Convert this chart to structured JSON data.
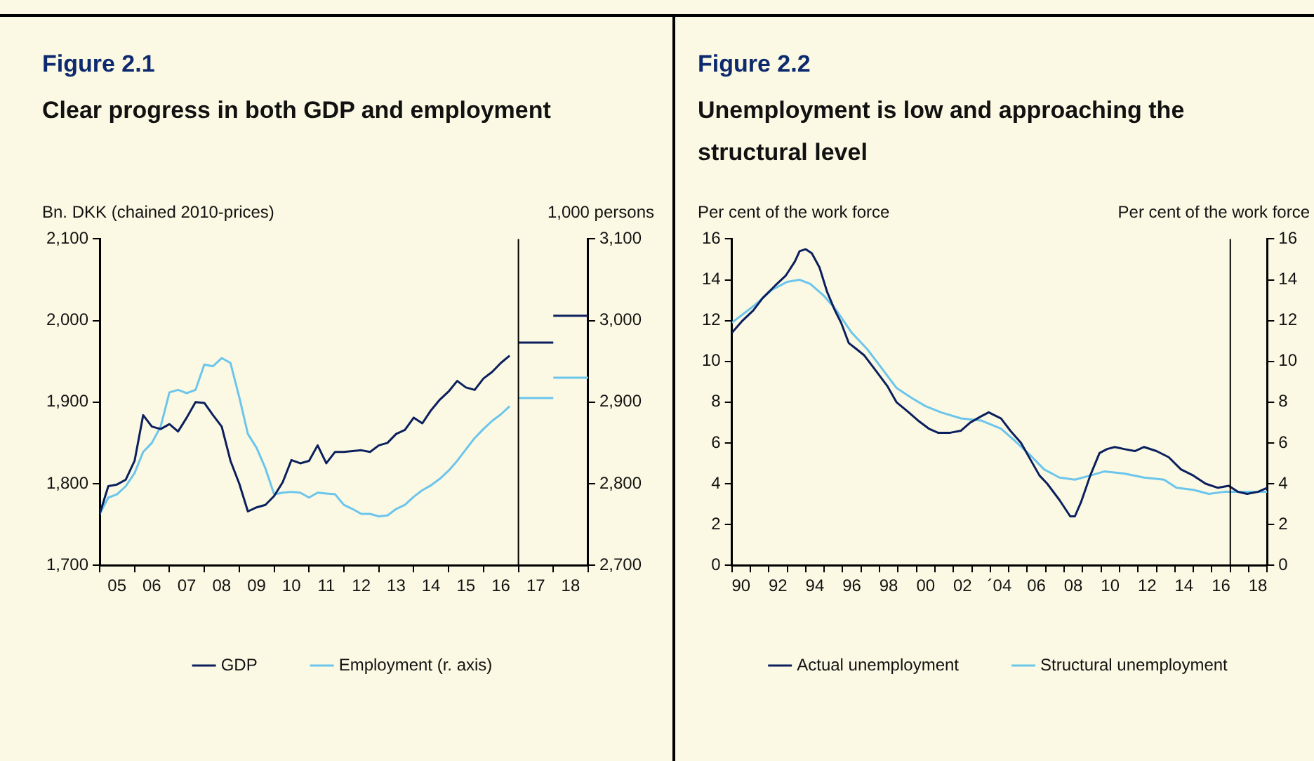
{
  "chart_data": [
    {
      "type": "line",
      "title": "Figure 2.1",
      "subtitle": "Clear progress in both GDP and employment",
      "ylabel": "Bn. DKK (chained 2010-prices)",
      "y2label": "1,000 persons",
      "xlim": [
        "2005",
        "2019"
      ],
      "xticks": [
        {
          "value": "2005",
          "label": null
        },
        {
          "value": "2006",
          "label": null
        },
        {
          "value": "2007",
          "label": null
        },
        {
          "value": "2008",
          "label": null
        },
        {
          "value": "2009",
          "label": null
        },
        {
          "value": "2010",
          "label": null
        },
        {
          "value": "2011",
          "label": null
        },
        {
          "value": "2012",
          "label": null
        },
        {
          "value": "2013",
          "label": null
        },
        {
          "value": "2014",
          "label": null
        },
        {
          "value": "2015",
          "label": null
        },
        {
          "value": "2016",
          "label": null
        },
        {
          "value": "2017",
          "label": null
        },
        {
          "value": "2018",
          "label": null
        },
        {
          "value": "2019",
          "label": null
        },
        {
          "value": "2005-07",
          "label": "05"
        },
        {
          "value": "2006-07",
          "label": "06"
        },
        {
          "value": "2007-07",
          "label": "07"
        },
        {
          "value": "2008-07",
          "label": "08"
        },
        {
          "value": "2009-07",
          "label": "09"
        },
        {
          "value": "2010-07",
          "label": "10"
        },
        {
          "value": "2011-07",
          "label": "11"
        },
        {
          "value": "2012-07",
          "label": "12"
        },
        {
          "value": "2013-07",
          "label": "13"
        },
        {
          "value": "2014-07",
          "label": "14"
        },
        {
          "value": "2015-07",
          "label": "15"
        },
        {
          "value": "2016-07",
          "label": "16"
        },
        {
          "value": "2017-07",
          "label": "17"
        },
        {
          "value": "2018-07",
          "label": "18"
        }
      ],
      "ylim": [
        1700,
        2100
      ],
      "yticks": [
        {
          "value": 1700,
          "label": "1,700"
        },
        {
          "value": 1800,
          "label": "1,800"
        },
        {
          "value": 1900,
          "label": "1,900"
        },
        {
          "value": 2000,
          "label": "2,000"
        },
        {
          "value": 2100,
          "label": "2,100"
        }
      ],
      "y2lim": [
        2700,
        3100
      ],
      "y2ticks": [
        {
          "value": 2700,
          "label": "2,700"
        },
        {
          "value": 2800,
          "label": "2,800"
        },
        {
          "value": 2900,
          "label": "2,900"
        },
        {
          "value": 3000,
          "label": "3,000"
        },
        {
          "value": 3100,
          "label": "3,100"
        }
      ],
      "series": [
        {
          "name": "GDP",
          "color": "#0b1f5e",
          "x": [
            "2005-01",
            "2005-04",
            "2005-07",
            "2005-10",
            "2006-01",
            "2006-04",
            "2006-07",
            "2006-10",
            "2007-01",
            "2007-04",
            "2007-07",
            "2007-10",
            "2008-01",
            "2008-04",
            "2008-07",
            "2008-10",
            "2009-01",
            "2009-04",
            "2009-07",
            "2009-10",
            "2010-01",
            "2010-04",
            "2010-07",
            "2010-10",
            "2011-01",
            "2011-04",
            "2011-07",
            "2011-10",
            "2012-01",
            "2012-04",
            "2012-07",
            "2012-10",
            "2013-01",
            "2013-04",
            "2013-07",
            "2013-10",
            "2014-01",
            "2014-04",
            "2014-07",
            "2014-10",
            "2015-01",
            "2015-04",
            "2015-07",
            "2015-10",
            "2016-01",
            "2016-04",
            "2016-07",
            "2016-10"
          ],
          "values": [
            1763,
            1797,
            1799,
            1805,
            1828,
            1884,
            1870,
            1867,
            1873,
            1864,
            1881,
            1900,
            1899,
            1884,
            1870,
            1828,
            1800,
            1766,
            1771,
            1774,
            1785,
            1802,
            1829,
            1825,
            1828,
            1847,
            1825,
            1839,
            1839,
            1840,
            1841,
            1839,
            1847,
            1850,
            1861,
            1866,
            1881,
            1874,
            1890,
            1903,
            1913,
            1926,
            1918,
            1915,
            1929,
            1937,
            1948,
            1957
          ]
        },
        {
          "name": "Employment (r. axis)",
          "color": "#6cc5ec",
          "axis": "y2",
          "x": [
            "2005-01",
            "2005-04",
            "2005-07",
            "2005-10",
            "2006-01",
            "2006-04",
            "2006-07",
            "2006-10",
            "2007-01",
            "2007-04",
            "2007-07",
            "2007-10",
            "2008-01",
            "2008-04",
            "2008-07",
            "2008-10",
            "2009-01",
            "2009-04",
            "2009-07",
            "2009-10",
            "2010-01",
            "2010-04",
            "2010-07",
            "2010-10",
            "2011-01",
            "2011-04",
            "2011-07",
            "2011-10",
            "2012-01",
            "2012-04",
            "2012-07",
            "2012-10",
            "2013-01",
            "2013-04",
            "2013-07",
            "2013-10",
            "2014-01",
            "2014-04",
            "2014-07",
            "2014-10",
            "2015-01",
            "2015-04",
            "2015-07",
            "2015-10",
            "2016-01",
            "2016-04",
            "2016-07",
            "2016-10"
          ],
          "values": [
            2763,
            2783,
            2787,
            2797,
            2813,
            2839,
            2850,
            2870,
            2912,
            2915,
            2911,
            2915,
            2946,
            2944,
            2954,
            2948,
            2906,
            2861,
            2844,
            2819,
            2787,
            2789,
            2790,
            2789,
            2783,
            2789,
            2788,
            2787,
            2774,
            2769,
            2763,
            2763,
            2760,
            2761,
            2769,
            2774,
            2784,
            2792,
            2798,
            2806,
            2816,
            2828,
            2842,
            2856,
            2867,
            2877,
            2885,
            2895
          ]
        },
        {
          "color": "#0b1f5e",
          "x": [
            "2017",
            "2018"
          ],
          "values": [
            1973,
            1973
          ]
        },
        {
          "color": "#0b1f5e",
          "x": [
            "2018",
            "2019"
          ],
          "values": [
            2006,
            2006
          ]
        },
        {
          "color": "#6cc5ec",
          "axis": "y2",
          "x": [
            "2017",
            "2018"
          ],
          "values": [
            2905,
            2905
          ]
        },
        {
          "color": "#6cc5ec",
          "axis": "y2",
          "x": [
            "2018",
            "2019"
          ],
          "values": [
            2930,
            2930
          ]
        }
      ],
      "ref_lines": [
        {
          "axis": "x",
          "value": "2017",
          "color": "#000000"
        }
      ],
      "grid": false,
      "legend": "bottom",
      "marker": "none"
    },
    {
      "type": "line",
      "title": "Figure 2.2",
      "subtitle": "Unemployment is low and approaching the structural level",
      "ylabel": "Per cent of the work force",
      "y2label": "Per cent of the work force",
      "xlim": [
        "1990",
        "2019"
      ],
      "xticks": [
        {
          "value": "1990",
          "label": null
        },
        {
          "value": "1991",
          "label": null
        },
        {
          "value": "1992",
          "label": null
        },
        {
          "value": "1993",
          "label": null
        },
        {
          "value": "1994",
          "label": null
        },
        {
          "value": "1995",
          "label": null
        },
        {
          "value": "1996",
          "label": null
        },
        {
          "value": "1997",
          "label": null
        },
        {
          "value": "1998",
          "label": null
        },
        {
          "value": "1999",
          "label": null
        },
        {
          "value": "2000",
          "label": null
        },
        {
          "value": "2001",
          "label": null
        },
        {
          "value": "2002",
          "label": null
        },
        {
          "value": "2003",
          "label": null
        },
        {
          "value": "2004",
          "label": null
        },
        {
          "value": "2005",
          "label": null
        },
        {
          "value": "2006",
          "label": null
        },
        {
          "value": "2007",
          "label": null
        },
        {
          "value": "2008",
          "label": null
        },
        {
          "value": "2009",
          "label": null
        },
        {
          "value": "2010",
          "label": null
        },
        {
          "value": "2011",
          "label": null
        },
        {
          "value": "2012",
          "label": null
        },
        {
          "value": "2013",
          "label": null
        },
        {
          "value": "2014",
          "label": null
        },
        {
          "value": "2015",
          "label": null
        },
        {
          "value": "2016",
          "label": null
        },
        {
          "value": "2017",
          "label": null
        },
        {
          "value": "2018",
          "label": null
        },
        {
          "value": "2019",
          "label": null
        },
        {
          "value": "1990-07",
          "label": "90"
        },
        {
          "value": "1992-07",
          "label": "92"
        },
        {
          "value": "1994-07",
          "label": "94"
        },
        {
          "value": "1996-07",
          "label": "96"
        },
        {
          "value": "1998-07",
          "label": "98"
        },
        {
          "value": "2000-07",
          "label": "00"
        },
        {
          "value": "2002-07",
          "label": "02"
        },
        {
          "value": "2004-07",
          "label": "´04"
        },
        {
          "value": "2006-07",
          "label": "06"
        },
        {
          "value": "2008-07",
          "label": "08"
        },
        {
          "value": "2010-07",
          "label": "10"
        },
        {
          "value": "2012-07",
          "label": "12"
        },
        {
          "value": "2014-07",
          "label": "14"
        },
        {
          "value": "2016-07",
          "label": "16"
        },
        {
          "value": "2018-07",
          "label": "18"
        }
      ],
      "ylim": [
        0,
        16
      ],
      "yticks": [
        0,
        2,
        4,
        6,
        8,
        10,
        12,
        14,
        16
      ],
      "y2lim": [
        0,
        16
      ],
      "y2ticks": [
        0,
        2,
        4,
        6,
        8,
        10,
        12,
        14,
        16
      ],
      "series": [
        {
          "name": "Actual unemployment",
          "color": "#0b1f5e",
          "x": [
            "1990-01",
            "1990-08",
            "1991-03",
            "1991-09",
            "1992-05",
            "1992-12",
            "1993-06",
            "1993-09",
            "1994-01",
            "1994-05",
            "1994-10",
            "1995-03",
            "1995-08",
            "1995-12",
            "1996-05",
            "1996-10",
            "1997-03",
            "1997-09",
            "1998-06",
            "1998-12",
            "1999-08",
            "2000-02",
            "2000-09",
            "2001-03",
            "2001-11",
            "2002-06",
            "2002-12",
            "2003-07",
            "2003-12",
            "2004-08",
            "2005-02",
            "2005-09",
            "2006-03",
            "2006-09",
            "2007-02",
            "2007-10",
            "2008-05",
            "2008-08",
            "2008-12",
            "2009-06",
            "2009-12",
            "2010-05",
            "2010-10",
            "2011-04",
            "2011-11",
            "2012-05",
            "2013-01",
            "2013-09",
            "2014-05",
            "2015-01",
            "2015-09",
            "2016-05",
            "2016-12",
            "2017-06",
            "2017-12",
            "2018-07",
            "2019-01"
          ],
          "values": [
            11.4,
            12,
            12.5,
            13.1,
            13.7,
            14.2,
            14.9,
            15.4,
            15.5,
            15.3,
            14.6,
            13.4,
            12.5,
            11.9,
            10.9,
            10.6,
            10.3,
            9.7,
            8.8,
            8,
            7.5,
            7.1,
            6.7,
            6.5,
            6.5,
            6.6,
            7,
            7.3,
            7.5,
            7.2,
            6.6,
            6,
            5.2,
            4.4,
            4,
            3.2,
            2.4,
            2.4,
            3.1,
            4.4,
            5.5,
            5.7,
            5.8,
            5.7,
            5.6,
            5.8,
            5.6,
            5.3,
            4.7,
            4.4,
            4,
            3.8,
            3.9,
            3.6,
            3.5,
            3.6,
            3.8
          ]
        },
        {
          "name": "Structural unemployment",
          "color": "#6cc5ec",
          "x": [
            "1990-01",
            "1991-03",
            "1992-03",
            "1993-01",
            "1993-09",
            "1994-04",
            "1995-01",
            "1995-09",
            "1996-07",
            "1997-05",
            "1998-02",
            "1998-12",
            "1999-10",
            "2000-07",
            "2001-05",
            "2002-06",
            "2003-07",
            "2004-08",
            "2005-05",
            "2006-03",
            "2006-12",
            "2007-10",
            "2008-08",
            "2009-06",
            "2010-03",
            "2011-04",
            "2012-05",
            "2013-06",
            "2014-02",
            "2015-01",
            "2015-11",
            "2016-09",
            "2017-06",
            "2018-04",
            "2019-01"
          ],
          "values": [
            11.9,
            12.7,
            13.5,
            13.9,
            14,
            13.8,
            13.2,
            12.5,
            11.4,
            10.6,
            9.7,
            8.7,
            8.2,
            7.8,
            7.5,
            7.2,
            7.1,
            6.7,
            6.1,
            5.4,
            4.7,
            4.3,
            4.2,
            4.4,
            4.6,
            4.5,
            4.3,
            4.2,
            3.8,
            3.7,
            3.5,
            3.6,
            3.6,
            3.6,
            3.6
          ]
        }
      ],
      "ref_lines": [
        {
          "axis": "x",
          "value": "2017",
          "color": "#000000"
        }
      ],
      "grid": false,
      "legend": "bottom",
      "marker": "none"
    }
  ]
}
